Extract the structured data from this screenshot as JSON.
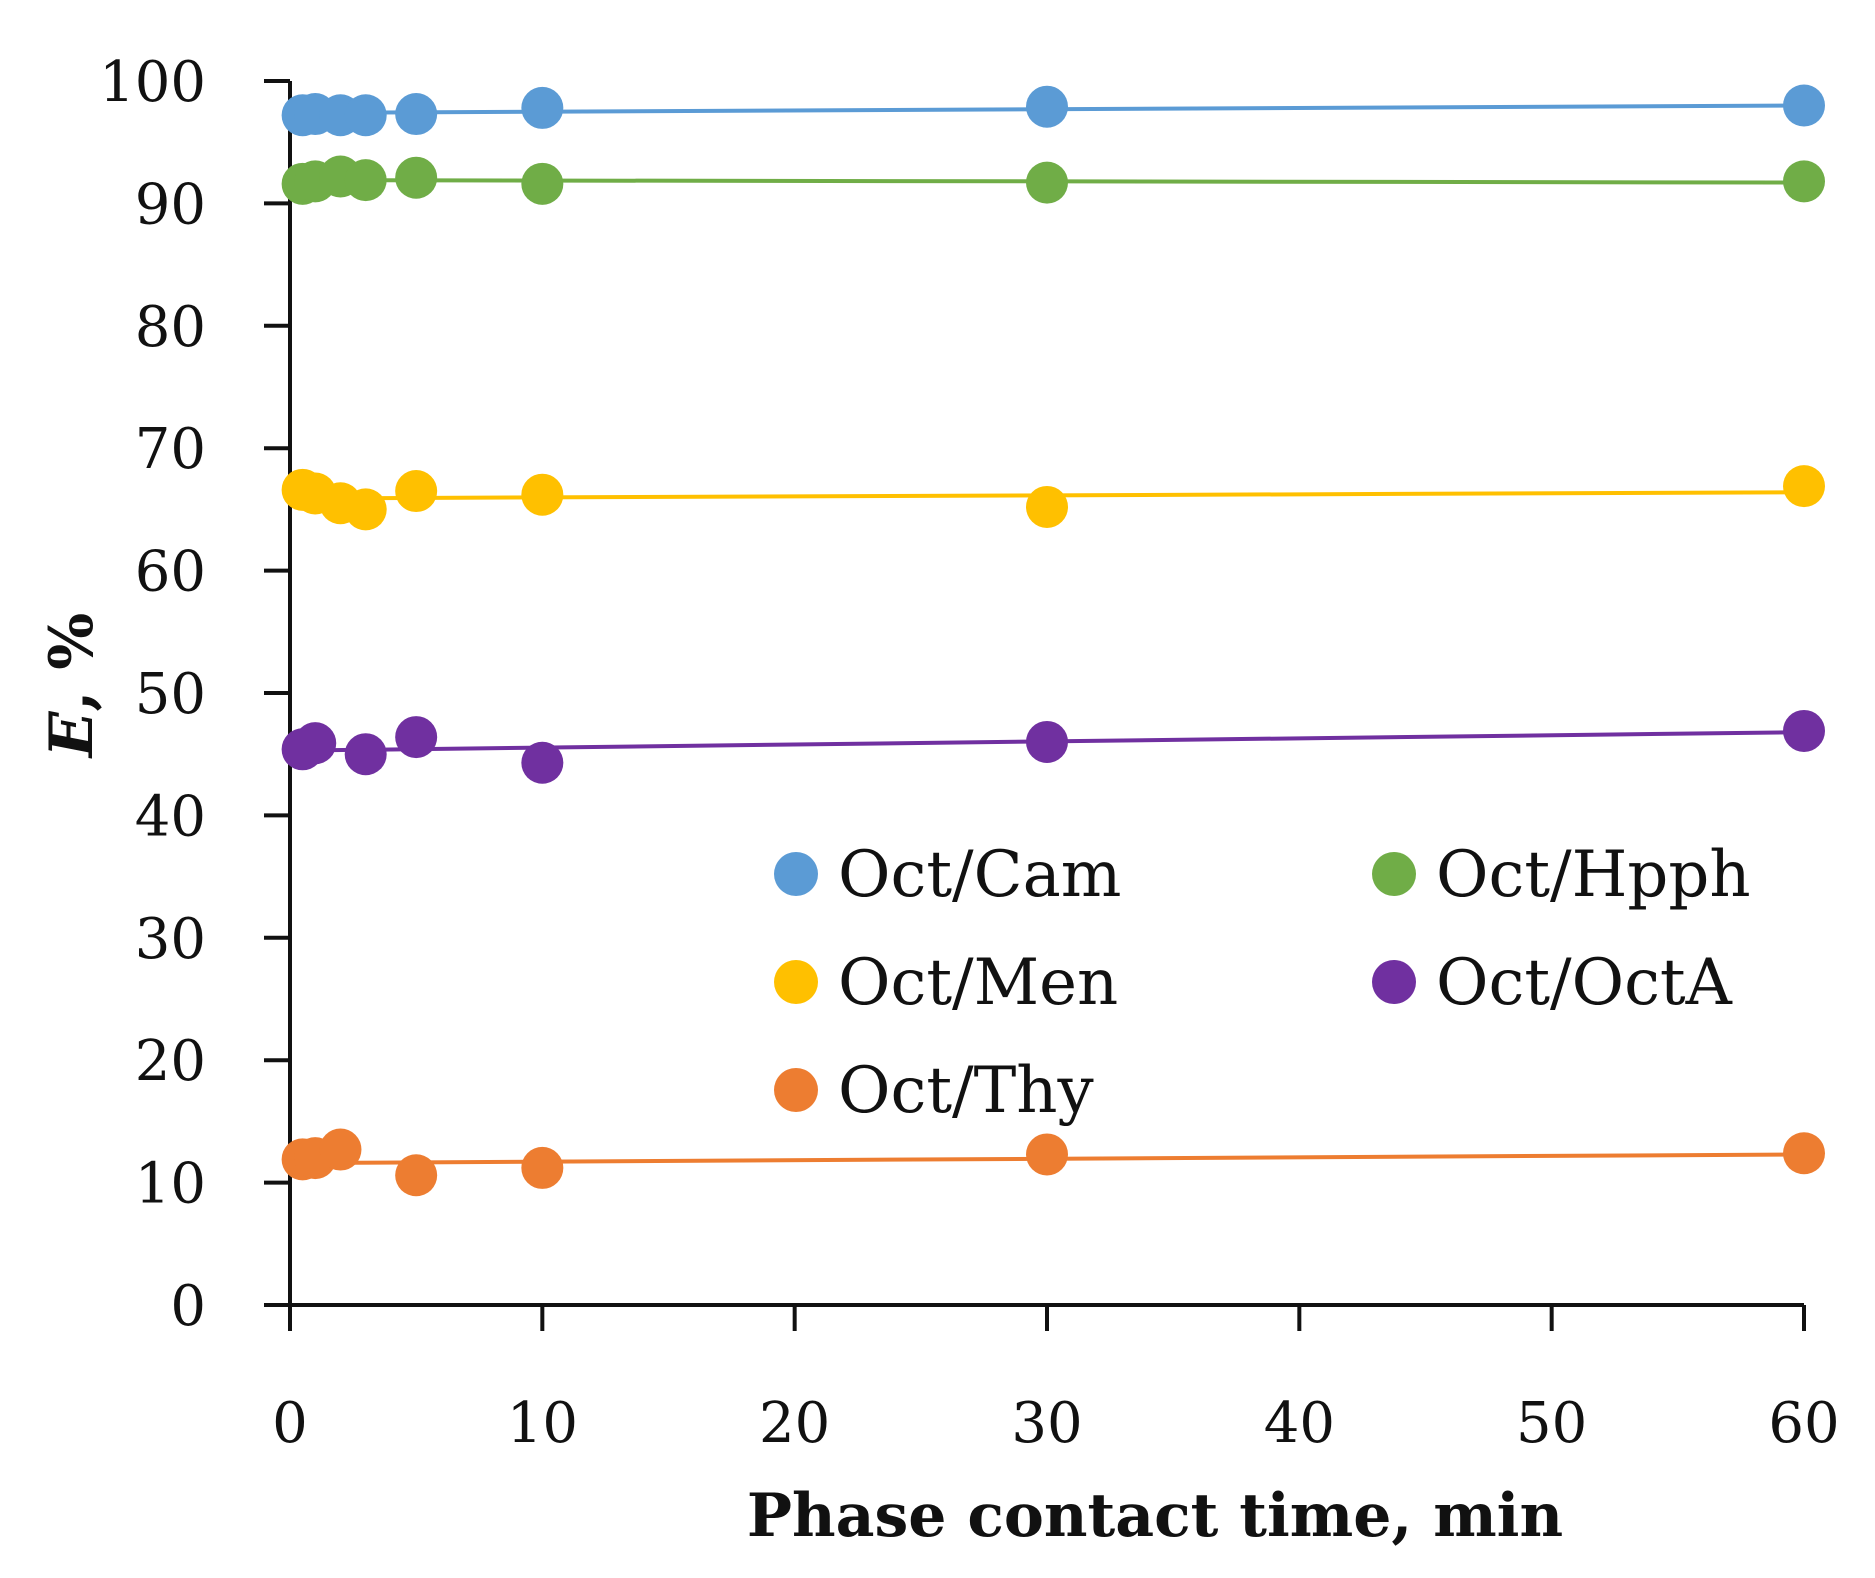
{
  "chart_data": {
    "type": "scatter",
    "title": "",
    "xlabel": "Phase contact time, min",
    "ylabel_italic": "E",
    "ylabel_rest": ", %",
    "xlim": [
      0,
      60
    ],
    "ylim": [
      0,
      100
    ],
    "x_ticks": [
      0,
      10,
      20,
      30,
      40,
      50,
      60
    ],
    "y_ticks": [
      0,
      10,
      20,
      30,
      40,
      50,
      60,
      70,
      80,
      90,
      100
    ],
    "grid": false,
    "legend_position": "center-right",
    "series": [
      {
        "name": "Oct/Cam",
        "color": "#5B9BD5",
        "x": [
          0.5,
          1,
          2,
          3,
          5,
          10,
          30,
          60
        ],
        "y": [
          97.2,
          97.3,
          97.2,
          97.2,
          97.3,
          97.8,
          97.9,
          98.0
        ],
        "trend": [
          97.4,
          98.0
        ]
      },
      {
        "name": "Oct/Hpph",
        "color": "#70AD47",
        "x": [
          0.5,
          1,
          2,
          3,
          5,
          10,
          30,
          60
        ],
        "y": [
          91.6,
          91.8,
          92.2,
          91.9,
          92.1,
          91.6,
          91.7,
          91.8
        ],
        "trend": [
          91.9,
          91.7
        ]
      },
      {
        "name": "Oct/Men",
        "color": "#FFC000",
        "x": [
          0.5,
          1,
          2,
          3,
          5,
          10,
          30,
          60
        ],
        "y": [
          66.6,
          66.3,
          65.5,
          65.0,
          66.5,
          66.2,
          65.2,
          66.9
        ],
        "trend": [
          65.9,
          66.4
        ]
      },
      {
        "name": "Oct/OctA",
        "color": "#7030A0",
        "x": [
          0.5,
          1,
          3,
          5,
          10,
          30,
          60
        ],
        "y": [
          45.4,
          45.9,
          45.0,
          46.4,
          44.3,
          46.0,
          46.9
        ],
        "trend": [
          45.3,
          46.8
        ]
      },
      {
        "name": "Oct/Thy",
        "color": "#ED7D31",
        "x": [
          0.5,
          1,
          2,
          5,
          10,
          30,
          60
        ],
        "y": [
          11.9,
          12.0,
          12.7,
          10.6,
          11.2,
          12.3,
          12.4
        ],
        "trend": [
          11.6,
          12.3
        ]
      }
    ]
  }
}
